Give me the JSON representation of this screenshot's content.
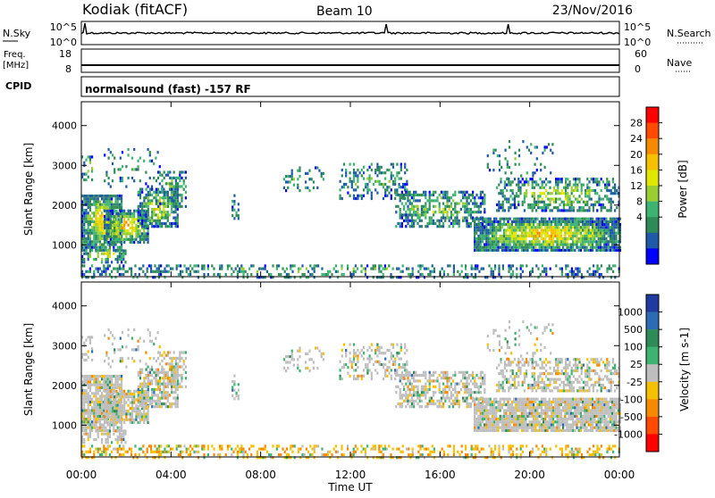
{
  "header": {
    "station": "Kodiak (fitACF)",
    "beam": "Beam 10",
    "date": "23/Nov/2016"
  },
  "strips": {
    "nsky_label": "N.Sky",
    "nsearch_label": "N.Search",
    "nsky_ticks": [
      "10^5",
      "10^0"
    ],
    "nsearch_ticks": [
      "10^5",
      "10^0"
    ],
    "freq_label": "Freq.",
    "freq_unit": "[MHz]",
    "freq_ticks": [
      "18",
      "8"
    ],
    "nave_label": "Nave",
    "nave_ticks": [
      "60",
      "0"
    ],
    "cpid_label": "CPID",
    "cpid_text": "normalsound (fast) -157 RF"
  },
  "chart_data": [
    {
      "type": "heatmap",
      "name": "power-panel",
      "ylabel": "Slant Range [km]",
      "xlabel": "",
      "ylim": [
        200,
        4600
      ],
      "yticks": [
        "4000",
        "3000",
        "2000",
        "1000"
      ],
      "colorbar": {
        "label": "Power [dB]",
        "ticks": [
          "28",
          "24",
          "20",
          "16",
          "12",
          "8",
          "4"
        ],
        "colors": [
          "#ff0000",
          "#ff4a00",
          "#f58a00",
          "#f5c000",
          "#dfe600",
          "#9acd32",
          "#3cb371",
          "#2e8b57",
          "#1e5aa8",
          "#0000ff"
        ]
      }
    },
    {
      "type": "heatmap",
      "name": "velocity-panel",
      "ylabel": "Slant Range [km]",
      "xlabel": "Time UT",
      "ylim": [
        200,
        4600
      ],
      "yticks": [
        "4000",
        "3000",
        "2000",
        "1000"
      ],
      "xticks": [
        "00:00",
        "04:00",
        "08:00",
        "12:00",
        "16:00",
        "20:00",
        "00:00"
      ],
      "colorbar": {
        "label": "Velocity [m s-1]",
        "ticks": [
          "1000",
          "500",
          "100",
          "25",
          "-25",
          "-100",
          "-500",
          "-1000"
        ],
        "colors": [
          "#1f3aa0",
          "#2e6bb5",
          "#2e8b57",
          "#3cb371",
          "#bebebe",
          "#f5c000",
          "#f58a00",
          "#ff4a00",
          "#ff0000"
        ]
      }
    }
  ]
}
